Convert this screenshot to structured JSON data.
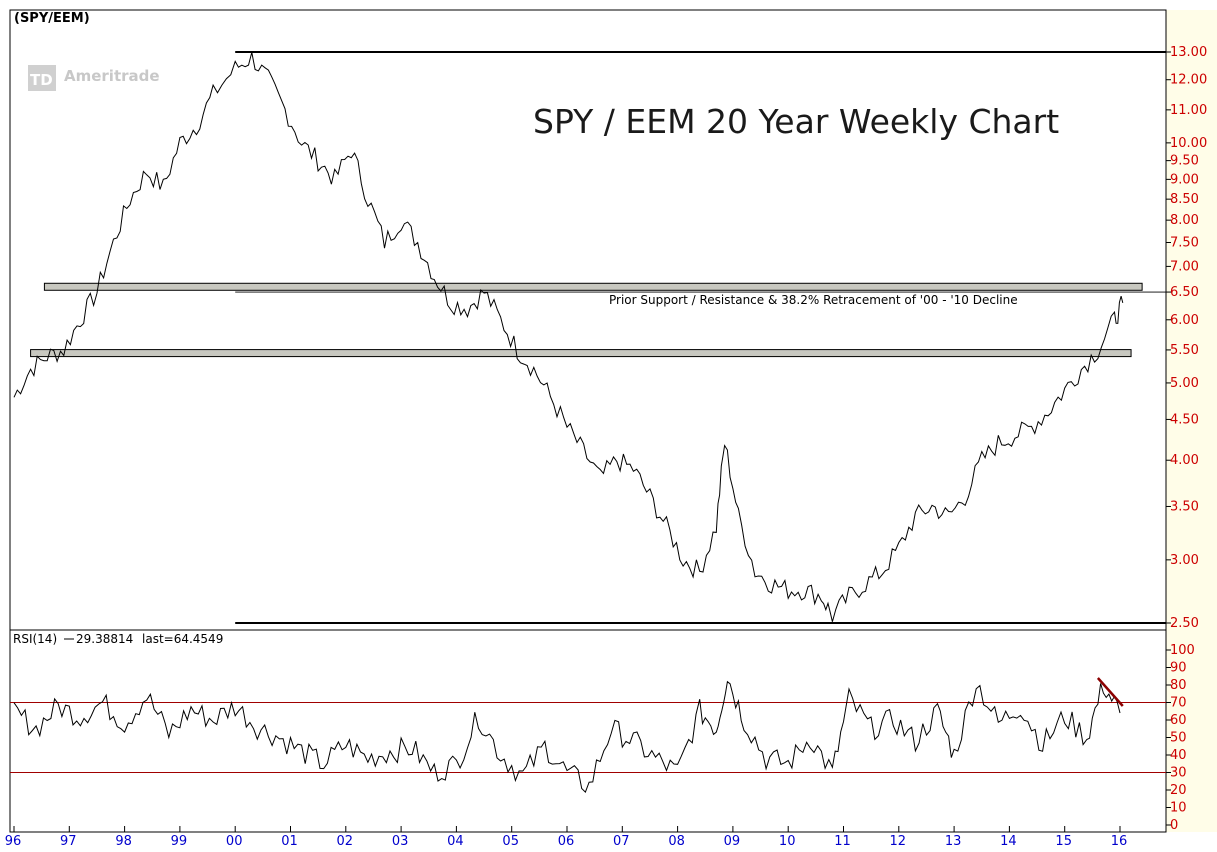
{
  "chart_data": [
    {
      "type": "line",
      "panel": "price",
      "label": "(SPY/EEM)",
      "title": "SPY / EEM 20 Year Weekly Chart",
      "watermark": "Ameritrade",
      "annotation": "Prior Support / Resistance & 38.2% Retracement of '00 - '10 Decline",
      "y_scale": "log",
      "ylim": [
        2.4,
        13.5
      ],
      "y_ticks": [
        2.5,
        3.0,
        3.5,
        4.0,
        4.5,
        5.0,
        5.5,
        6.0,
        6.5,
        7.0,
        7.5,
        8.0,
        8.5,
        9.0,
        9.5,
        10.0,
        11.0,
        12.0,
        13.0
      ],
      "y_tick_labels": [
        "2.50",
        "3.00",
        "3.50",
        "4.00",
        "4.50",
        "5.00",
        "5.50",
        "6.00",
        "6.50",
        "7.00",
        "7.50",
        "8.00",
        "8.50",
        "9.00",
        "9.50",
        "10.00",
        "11.00",
        "12.00",
        "13.00"
      ],
      "x_ticks": [
        "96",
        "97",
        "98",
        "99",
        "00",
        "01",
        "02",
        "03",
        "04",
        "05",
        "06",
        "07",
        "08",
        "09",
        "10",
        "11",
        "12",
        "13",
        "14",
        "15",
        "16"
      ],
      "xlim": [
        1996.0,
        2016.9
      ],
      "series": [
        {
          "x": [
            1996.0,
            1996.3,
            1996.6,
            1996.9,
            1997.2,
            1997.5,
            1997.8,
            1998.1,
            1998.4,
            1998.7,
            1999.0,
            1999.3,
            1999.6,
            2000.0,
            2000.3,
            2000.6,
            2000.9,
            2001.2,
            2001.5,
            2001.8,
            2002.1,
            2002.4,
            2002.7,
            2003.0,
            2003.3,
            2003.6,
            2003.9,
            2004.2,
            2004.5,
            2004.8,
            2005.1,
            2005.4,
            2005.7,
            2006.0,
            2006.3,
            2006.6,
            2006.9,
            2007.2,
            2007.5,
            2007.8,
            2008.1,
            2008.4,
            2008.7,
            2008.85,
            2009.1,
            2009.4,
            2009.7,
            2010.0,
            2010.3,
            2010.6,
            2010.8,
            2011.1,
            2011.4,
            2011.7,
            2012.0,
            2012.3,
            2012.6,
            2012.9,
            2013.2,
            2013.5,
            2013.8,
            2014.1,
            2014.4,
            2014.7,
            2015.0,
            2015.3,
            2015.6,
            2015.9,
            2016.05
          ],
          "y": [
            4.8,
            5.2,
            5.4,
            5.5,
            6.0,
            6.5,
            7.5,
            8.5,
            9.2,
            8.8,
            10.0,
            10.5,
            11.5,
            12.4,
            12.8,
            12.0,
            11.0,
            10.0,
            9.5,
            9.0,
            9.8,
            8.5,
            7.5,
            8.0,
            7.5,
            6.8,
            6.3,
            6.2,
            6.5,
            6.0,
            5.5,
            5.2,
            4.8,
            4.4,
            4.1,
            3.8,
            4.0,
            3.9,
            3.6,
            3.3,
            3.0,
            2.9,
            3.3,
            4.2,
            3.4,
            2.9,
            2.8,
            2.75,
            2.75,
            2.7,
            2.55,
            2.7,
            2.8,
            2.9,
            3.1,
            3.4,
            3.5,
            3.4,
            3.6,
            4.0,
            4.2,
            4.3,
            4.4,
            4.6,
            4.9,
            5.2,
            5.5,
            6.0,
            6.3
          ]
        }
      ],
      "levels": [
        {
          "value": 13.0,
          "from": 2000.0,
          "to": 2016.9,
          "style": "line"
        },
        {
          "value": 6.5,
          "from": 2000.0,
          "to": 2016.9,
          "style": "thin-line"
        },
        {
          "value": 6.6,
          "from": 1996.55,
          "to": 2016.4,
          "style": "band"
        },
        {
          "value": 5.45,
          "from": 1996.3,
          "to": 2016.2,
          "style": "band"
        },
        {
          "value": 2.5,
          "from": 2000.0,
          "to": 2016.9,
          "style": "line"
        }
      ]
    },
    {
      "type": "line",
      "panel": "rsi",
      "label": "RSI(14) — 29.38814 last=64.4549",
      "label_parts": [
        "RSI(14)",
        "29.38814",
        "last=64.4549"
      ],
      "ylim": [
        0,
        100
      ],
      "y_ticks": [
        0,
        10,
        20,
        30,
        40,
        50,
        60,
        70,
        80,
        90,
        100
      ],
      "y_tick_labels": [
        "0",
        "10",
        "20",
        "30",
        "40",
        "50",
        "60",
        "70",
        "80",
        "90",
        "100"
      ],
      "reference_lines": [
        70,
        30
      ],
      "series": [
        {
          "x": [
            1996.0,
            1996.4,
            1996.8,
            1997.2,
            1997.6,
            1998.0,
            1998.4,
            1998.8,
            1999.2,
            1999.6,
            2000.0,
            2000.4,
            2000.8,
            2001.2,
            2001.6,
            2002.0,
            2002.4,
            2002.8,
            2003.2,
            2003.6,
            2004.0,
            2004.4,
            2004.8,
            2005.2,
            2005.6,
            2006.0,
            2006.4,
            2006.8,
            2007.2,
            2007.6,
            2008.0,
            2008.4,
            2008.7,
            2008.9,
            2009.2,
            2009.6,
            2010.0,
            2010.4,
            2010.8,
            2011.1,
            2011.5,
            2011.9,
            2012.3,
            2012.7,
            2013.0,
            2013.4,
            2013.8,
            2014.2,
            2014.6,
            2015.0,
            2015.4,
            2015.7,
            2016.0
          ],
          "y": [
            65,
            55,
            68,
            62,
            70,
            58,
            74,
            52,
            66,
            60,
            68,
            56,
            50,
            42,
            35,
            46,
            38,
            42,
            44,
            30,
            35,
            62,
            40,
            28,
            45,
            30,
            22,
            55,
            48,
            38,
            30,
            65,
            55,
            85,
            60,
            38,
            35,
            50,
            30,
            72,
            55,
            60,
            48,
            65,
            40,
            82,
            58,
            68,
            46,
            62,
            50,
            80,
            64
          ]
        }
      ],
      "trendline": {
        "from": [
          2015.6,
          84
        ],
        "to": [
          2016.05,
          68
        ],
        "color": "#8b0000"
      }
    }
  ],
  "colors": {
    "background": "#ffffff",
    "axis_panel": "#fffde8",
    "price_line": "#000000",
    "band_fill": "#c8c8c0",
    "tick_text": "#cc0000",
    "x_tick_text": "#0000cc",
    "reference_line": "#a00000",
    "trendline": "#8b0000"
  }
}
